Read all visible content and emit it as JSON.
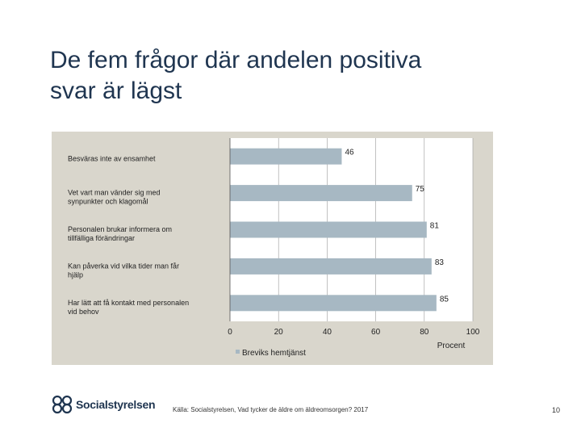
{
  "slide": {
    "title": "De fem frågor där andelen positiva\nsvar är lägst",
    "source": "Källa: Socialstyrelsen, Vad tycker de äldre om äldreomsorgen? 2017",
    "page_number": "10",
    "logo_text": "Socialstyrelsen",
    "colors": {
      "title": "#1f3550",
      "panel": "#d9d6cc",
      "plot_area": "#ffffff",
      "bar": "#a7b8c3"
    }
  },
  "chart_data": {
    "type": "bar",
    "orientation": "horizontal",
    "categories": [
      "Besväras inte av ensamhet",
      "Vet vart man vänder sig med synpunkter och klagomål",
      "Personalen brukar informera om tillfälliga förändringar",
      "Kan påverka vid vilka tider man får hjälp",
      "Har lätt att få kontakt med personalen vid behov"
    ],
    "category_lines": [
      [
        "Besväras inte av ensamhet"
      ],
      [
        "Vet vart man vänder sig med",
        "synpunkter och klagomål"
      ],
      [
        "Personalen brukar informera om",
        "tillfälliga förändringar"
      ],
      [
        "Kan påverka vid vilka tider man får",
        "hjälp"
      ],
      [
        "Har lätt att få kontakt med personalen",
        "vid behov"
      ]
    ],
    "series": [
      {
        "name": "Breviks hemtjänst",
        "values": [
          46,
          75,
          81,
          83,
          85
        ]
      }
    ],
    "xlim": [
      0,
      100
    ],
    "xticks": [
      0,
      20,
      40,
      60,
      80,
      100
    ],
    "xlabel": "Procent",
    "grid": true,
    "legend_position": "bottom"
  }
}
